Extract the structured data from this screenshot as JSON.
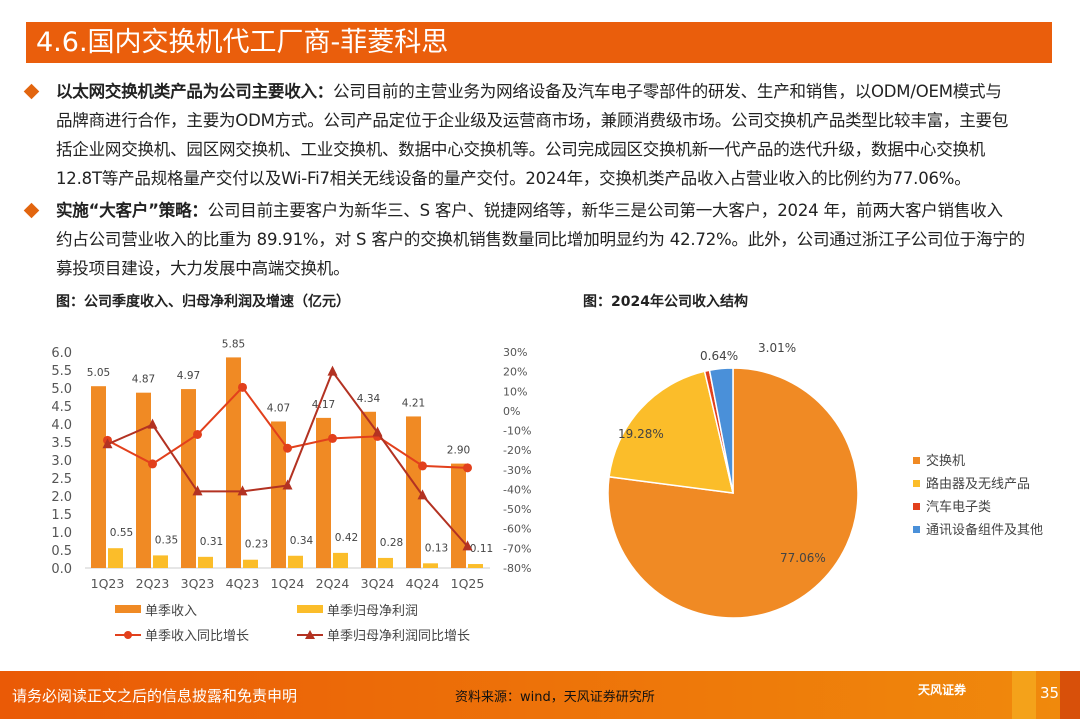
{
  "title": "4.6.国内交换机代工厂商-菲菱科思",
  "bullets": [
    {
      "bold": "以太网交换机类产品为公司主要收入：",
      "lines": [
        "公司目前的主营业务为网络设备及汽车电子零部件的研发、生产和销售，以ODM/OEM模式与",
        "品牌商进行合作，主要为ODM方式。公司产品定位于企业级及运营商市场，兼顾消费级市场。公司交换机产品类型比较丰富，主要包",
        "括企业网交换机、园区网交换机、工业交换机、数据中心交换机等。公司完成园区交换机新一代产品的迭代升级，数据中心交换机",
        "12.8T等产品规格量产交付以及Wi-Fi7相关无线设备的量产交付。2024年，交换机类产品收入占营业收入的比例约为77.06%。"
      ]
    },
    {
      "bold": "实施“大客户”策略：",
      "lines": [
        "公司目前主要客户为新华三、S 客户、锐捷网络等，新华三是公司第一大客户，2024 年，前两大客户销售收入",
        "约占公司营业收入的比重为 89.91%，对 S 客户的交换机销售数量同比增加明显约为 42.72%。此外，公司通过浙江子公司位于海宁的",
        "募投项目建设，大力发展中高端交换机。"
      ]
    }
  ],
  "chart_data": [
    {
      "type": "bar+line",
      "title": "图：公司季度收入、归母净利润及增速（亿元）",
      "categories": [
        "1Q23",
        "2Q23",
        "3Q23",
        "4Q23",
        "1Q24",
        "2Q24",
        "3Q24",
        "4Q24",
        "1Q25"
      ],
      "ylim": [
        0,
        6
      ],
      "yticks": [
        "0.0",
        "0.5",
        "1.0",
        "1.5",
        "2.0",
        "2.5",
        "3.0",
        "3.5",
        "4.0",
        "4.5",
        "5.0",
        "5.5",
        "6.0"
      ],
      "y2lim": [
        -80,
        30
      ],
      "y2ticks": [
        "-80%",
        "-70%",
        "-60%",
        "-50%",
        "-40%",
        "-30%",
        "-20%",
        "-10%",
        "0%",
        "10%",
        "20%",
        "30%"
      ],
      "series": [
        {
          "name": "单季收入",
          "kind": "bar",
          "axis": "left",
          "color": "#f08a24",
          "values": [
            5.05,
            4.87,
            4.97,
            5.85,
            4.07,
            4.17,
            4.34,
            4.21,
            2.9
          ],
          "labels": [
            "5.05",
            "4.87",
            "4.97",
            "5.85",
            "4.07",
            "4.17",
            "4.34",
            "4.21",
            "2.90"
          ]
        },
        {
          "name": "单季归母净利润",
          "kind": "bar",
          "axis": "left",
          "color": "#fbbd2a",
          "values": [
            0.55,
            0.35,
            0.31,
            0.23,
            0.34,
            0.42,
            0.28,
            0.13,
            0.11
          ],
          "labels": [
            "0.55",
            "0.35",
            "0.31",
            "0.23",
            "0.34",
            "0.42",
            "0.28",
            "0.13",
            "0.11"
          ]
        },
        {
          "name": "单季收入同比增长",
          "kind": "line",
          "marker": "circle",
          "axis": "right",
          "color": "#e2401c",
          "values": [
            -15,
            -27,
            -12,
            12,
            -19,
            -14,
            -13,
            -28,
            -29
          ]
        },
        {
          "name": "单季归母净利润同比增长",
          "kind": "line",
          "marker": "triangle",
          "axis": "right",
          "color": "#b33222",
          "values": [
            -17,
            -7,
            -41,
            -41,
            -38,
            20,
            -11,
            -43,
            -69
          ]
        }
      ],
      "legend": "bottom"
    },
    {
      "type": "pie",
      "title": "图：2024年公司收入结构",
      "slices": [
        {
          "name": "交换机",
          "value": 77.06,
          "label": "77.06%",
          "color": "#f08a24"
        },
        {
          "name": "路由器及无线产品",
          "value": 19.28,
          "label": "19.28%",
          "color": "#fbbd2a"
        },
        {
          "name": "汽车电子类",
          "value": 0.64,
          "label": "0.64%",
          "color": "#e2401c"
        },
        {
          "name": "通讯设备组件及其他",
          "value": 3.01,
          "label": "3.01%",
          "color": "#4a90d9"
        }
      ],
      "legend": "right"
    }
  ],
  "footer": {
    "disclaimer": "请务必阅读正文之后的信息披露和免责申明",
    "source": "资料来源：wind，天风证券研究所",
    "logo": "天风证券",
    "page": "35"
  }
}
